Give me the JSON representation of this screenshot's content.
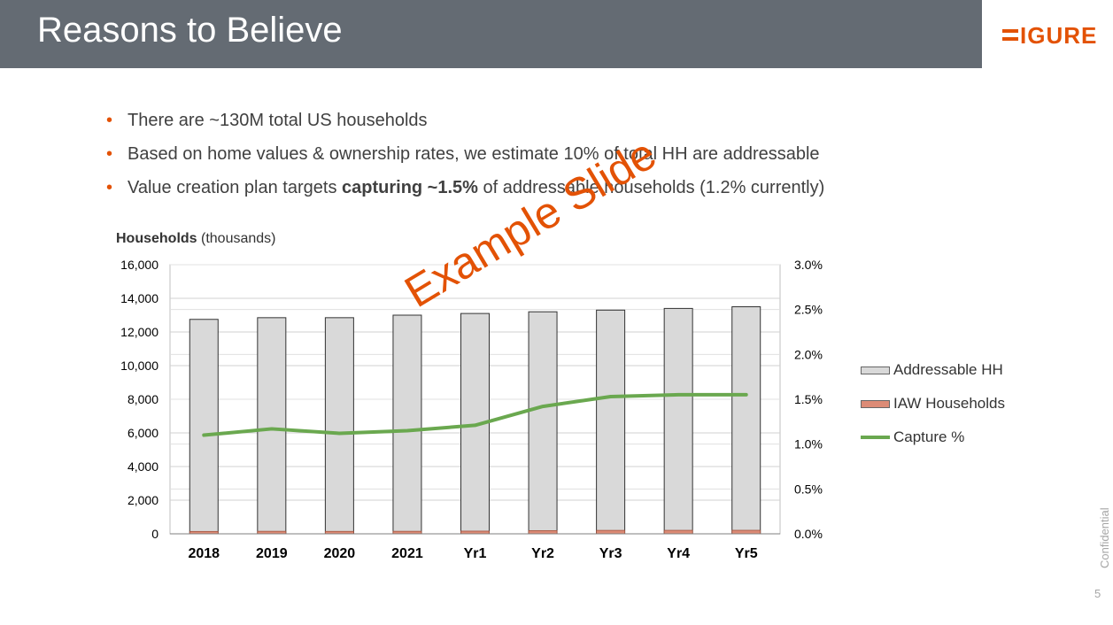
{
  "slide": {
    "title": "Reasons to Believe",
    "logo_text": "IGURE",
    "watermark": "Example Slide",
    "confidential": "Confidential",
    "page_number": "5"
  },
  "bullets": [
    {
      "pre": "There are ~130M total US households",
      "bold": "",
      "post": ""
    },
    {
      "pre": "Based on home values & ownership rates, we estimate 10% of total HH are addressable",
      "bold": "",
      "post": ""
    },
    {
      "pre": "Value creation plan targets ",
      "bold": "capturing ~1.5%",
      "post": " of addressable households (1.2% currently)"
    }
  ],
  "chart_data": {
    "type": "bar",
    "y_title_bold": "Households",
    "y_title_rest": " (thousands)",
    "categories": [
      "2018",
      "2019",
      "2020",
      "2021",
      "Yr1",
      "Yr2",
      "Yr3",
      "Yr4",
      "Yr5"
    ],
    "series": [
      {
        "name": "Addressable HH",
        "type": "bar",
        "axis": "left",
        "color": "#d9d9d9",
        "values": [
          12750,
          12850,
          12850,
          13000,
          13100,
          13200,
          13300,
          13400,
          13500
        ]
      },
      {
        "name": "IAW Households",
        "type": "bar",
        "axis": "left",
        "color": "#dc8b76",
        "values": [
          140,
          150,
          145,
          150,
          160,
          190,
          205,
          208,
          210
        ]
      },
      {
        "name": "Capture %",
        "type": "line",
        "axis": "right",
        "color": "#6aa84f",
        "values": [
          1.1,
          1.17,
          1.12,
          1.15,
          1.21,
          1.42,
          1.53,
          1.55,
          1.55
        ]
      }
    ],
    "y_left": {
      "min": 0,
      "max": 16000,
      "ticks": [
        "0",
        "2,000",
        "4,000",
        "6,000",
        "8,000",
        "10,000",
        "12,000",
        "14,000",
        "16,000"
      ]
    },
    "y_right": {
      "min": 0,
      "max": 3.0,
      "ticks": [
        "0.0%",
        "0.5%",
        "1.0%",
        "1.5%",
        "2.0%",
        "2.5%",
        "3.0%"
      ]
    },
    "legend": [
      "Addressable HH",
      "IAW Households",
      "Capture %"
    ]
  },
  "colors": {
    "accent": "#e35205",
    "title_bar": "#646b73"
  }
}
